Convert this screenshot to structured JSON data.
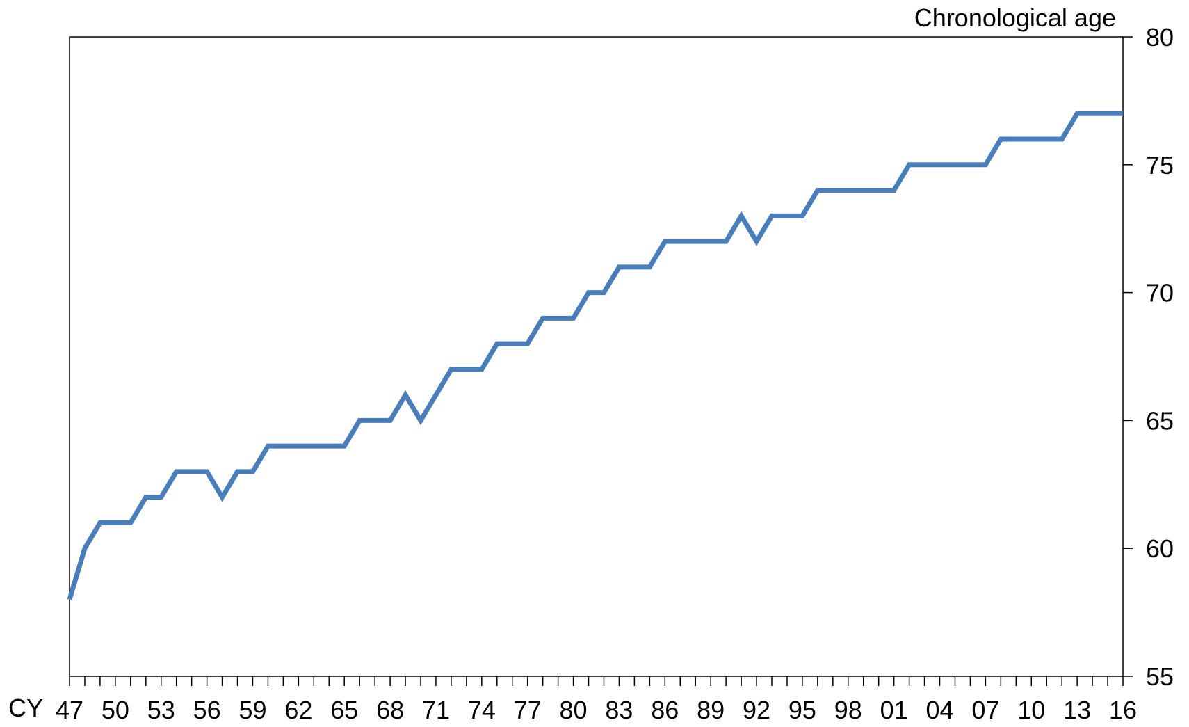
{
  "chart_data": {
    "type": "line",
    "ylabel": "Chronological age",
    "x_prefix": "CY",
    "x": [
      1947,
      1948,
      1949,
      1950,
      1951,
      1952,
      1953,
      1954,
      1955,
      1956,
      1957,
      1958,
      1959,
      1960,
      1961,
      1962,
      1963,
      1964,
      1965,
      1966,
      1967,
      1968,
      1969,
      1970,
      1971,
      1972,
      1973,
      1974,
      1975,
      1976,
      1977,
      1978,
      1979,
      1980,
      1981,
      1982,
      1983,
      1984,
      1985,
      1986,
      1987,
      1988,
      1989,
      1990,
      1991,
      1992,
      1993,
      1994,
      1995,
      1996,
      1997,
      1998,
      1999,
      2000,
      2001,
      2002,
      2003,
      2004,
      2005,
      2006,
      2007,
      2008,
      2009,
      2010,
      2011,
      2012,
      2013,
      2014,
      2015,
      2016
    ],
    "series": [
      {
        "name": "",
        "color": "#4a7ebb",
        "values": [
          58,
          60,
          61,
          61,
          61,
          62,
          62,
          63,
          63,
          63,
          62,
          63,
          63,
          64,
          64,
          64,
          64,
          64,
          64,
          65,
          65,
          65,
          66,
          65,
          66,
          67,
          67,
          67,
          68,
          68,
          68,
          69,
          69,
          69,
          70,
          70,
          71,
          71,
          71,
          72,
          72,
          72,
          72,
          72,
          73,
          72,
          73,
          73,
          73,
          74,
          74,
          74,
          74,
          74,
          74,
          75,
          75,
          75,
          75,
          75,
          75,
          76,
          76,
          76,
          76,
          76,
          77,
          77,
          77,
          77
        ]
      }
    ],
    "xticklabels": [
      "47",
      "50",
      "53",
      "56",
      "59",
      "62",
      "65",
      "68",
      "71",
      "74",
      "77",
      "80",
      "83",
      "86",
      "89",
      "92",
      "95",
      "98",
      "01",
      "04",
      "07",
      "10",
      "13",
      "16"
    ],
    "yticks": [
      55,
      60,
      65,
      70,
      75,
      80
    ],
    "ylim": [
      55,
      80
    ],
    "xlim": [
      1947,
      2016
    ],
    "y_axis_side": "right",
    "grid": false,
    "legend": "none"
  }
}
